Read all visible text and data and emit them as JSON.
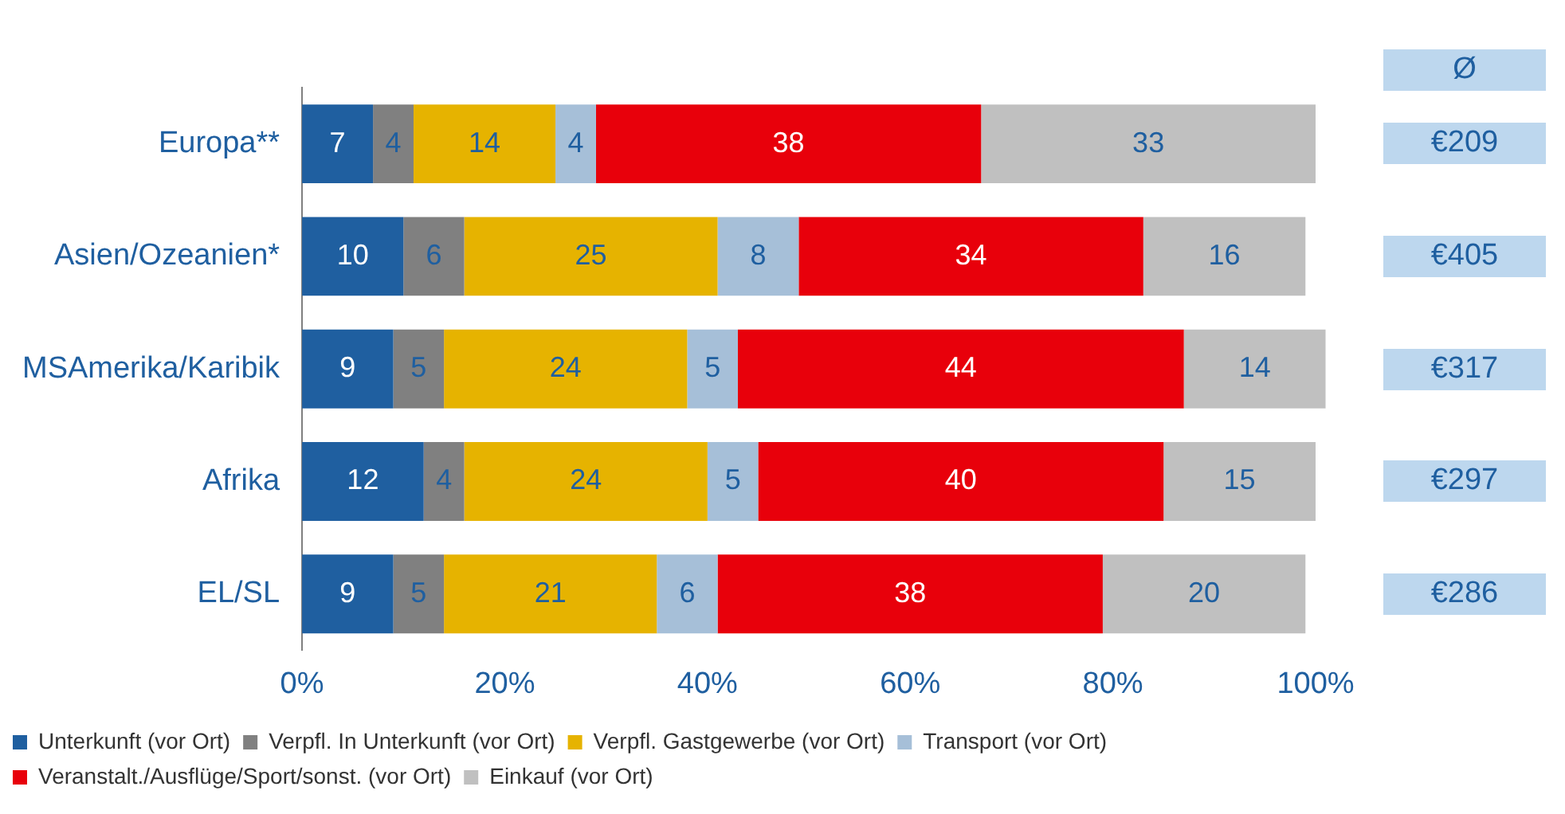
{
  "chart_data": {
    "type": "bar",
    "orientation": "horizontal",
    "stacked": true,
    "categories": [
      "Europa**",
      "Asien/Ozeanien*",
      "MSAmerika/Karibik",
      "Afrika",
      "EL/SL"
    ],
    "series": [
      {
        "name": "Unterkunft (vor Ort)",
        "color": "#1f5fa0",
        "values": [
          7,
          10,
          9,
          12,
          9
        ]
      },
      {
        "name": "Verpfl. In Unterkunft (vor Ort)",
        "color": "#808080",
        "values": [
          4,
          6,
          5,
          4,
          5
        ]
      },
      {
        "name": "Verpfl. Gastgewerbe (vor Ort)",
        "color": "#e6b300",
        "values": [
          14,
          25,
          24,
          24,
          21
        ]
      },
      {
        "name": "Transport (vor Ort)",
        "color": "#a6bfd8",
        "values": [
          4,
          8,
          5,
          5,
          6
        ]
      },
      {
        "name": "Veranstalt./Ausflüge/Sport/sonst. (vor Ort)",
        "color": "#e8000b",
        "values": [
          38,
          34,
          44,
          40,
          38
        ]
      },
      {
        "name": "Einkauf (vor Ort)",
        "color": "#c0c0c0",
        "values": [
          33,
          16,
          14,
          15,
          20
        ]
      }
    ],
    "xlim": [
      0,
      101
    ],
    "xticks": [
      {
        "value": 0,
        "label": "0%"
      },
      {
        "value": 20,
        "label": "20%"
      },
      {
        "value": 40,
        "label": "40%"
      },
      {
        "value": 60,
        "label": "60%"
      },
      {
        "value": 80,
        "label": "80%"
      },
      {
        "value": 100,
        "label": "100%"
      }
    ],
    "data_labels": true,
    "grid": false,
    "legend": "bottom",
    "annotations": [
      "Ø",
      "€209",
      "€405",
      "€317",
      "€297",
      "€286"
    ]
  }
}
